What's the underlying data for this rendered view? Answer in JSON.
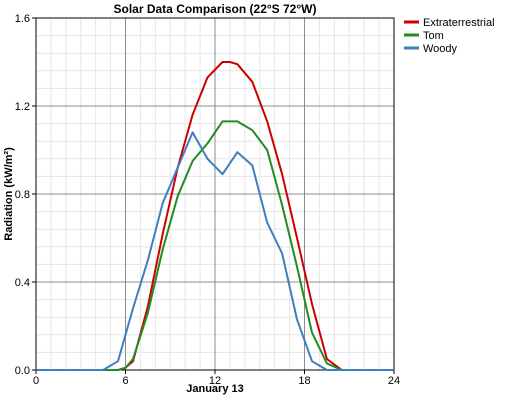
{
  "chart_data": {
    "type": "line",
    "title": "Solar Data Comparison (22°S 72°W)",
    "xlabel": "January 13",
    "ylabel": "Radiation (kW/m²)",
    "xlim": [
      0,
      24
    ],
    "ylim": [
      0,
      1.6
    ],
    "xticks": [
      0,
      6,
      12,
      18,
      24
    ],
    "xtick_labels": [
      "0",
      "6",
      "12",
      "18",
      "24"
    ],
    "yticks": [
      0.0,
      0.4,
      0.8,
      1.2,
      1.6
    ],
    "ytick_labels": [
      "0.0",
      "0.4",
      "0.8",
      "1.2",
      "1.6"
    ],
    "grid": true,
    "legend_position": "top-right",
    "series": [
      {
        "name": "Extraterrestrial",
        "color": "#cc0000",
        "x": [
          0,
          5.5,
          6,
          6.5,
          7.5,
          8.5,
          9.5,
          10.5,
          11.5,
          12.5,
          13,
          13.5,
          14.5,
          15.5,
          16.5,
          17.5,
          18.5,
          19.5,
          20.5
        ],
        "y": [
          0,
          0,
          0.01,
          0.04,
          0.29,
          0.62,
          0.92,
          1.16,
          1.33,
          1.4,
          1.4,
          1.39,
          1.31,
          1.13,
          0.89,
          0.6,
          0.3,
          0.05,
          0.0
        ]
      },
      {
        "name": "Tom",
        "color": "#228b22",
        "x": [
          0,
          5.5,
          6,
          6.5,
          7.5,
          8.5,
          9.5,
          10.5,
          11.5,
          12.5,
          13,
          13.5,
          14.5,
          15.5,
          16.5,
          17.5,
          18.5,
          19.5,
          20.5
        ],
        "y": [
          0,
          0,
          0.01,
          0.05,
          0.26,
          0.55,
          0.79,
          0.95,
          1.03,
          1.13,
          1.13,
          1.13,
          1.09,
          1.0,
          0.75,
          0.47,
          0.17,
          0.03,
          0.0
        ]
      },
      {
        "name": "Woody",
        "color": "#3f7fbf",
        "x": [
          0,
          4.5,
          5.5,
          6.5,
          7.5,
          8.5,
          9.5,
          10.5,
          11.5,
          12.5,
          13.5,
          14.5,
          15.5,
          16.5,
          17.5,
          18.5,
          19.5,
          24
        ],
        "y": [
          0,
          0,
          0.04,
          0.28,
          0.5,
          0.76,
          0.92,
          1.08,
          0.96,
          0.89,
          0.99,
          0.93,
          0.67,
          0.53,
          0.23,
          0.04,
          0.0,
          0.0
        ]
      }
    ]
  }
}
